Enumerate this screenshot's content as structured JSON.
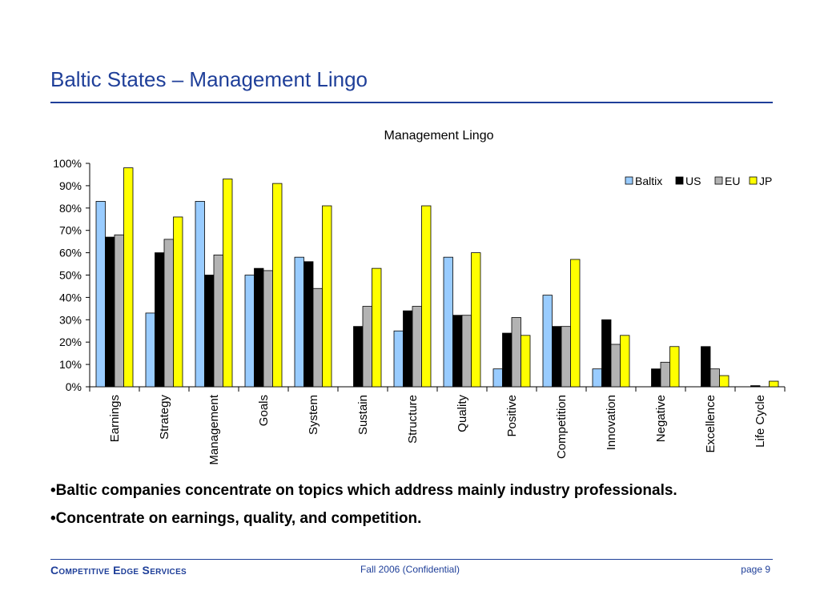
{
  "slide": {
    "title": "Baltic States – Management Lingo",
    "bullets": [
      "•Baltic companies concentrate on topics which address mainly industry professionals.",
      "•Concentrate on earnings, quality, and competition."
    ]
  },
  "footer": {
    "company": "Competitive Edge Services",
    "center": "Fall 2006 (Confidential)",
    "page": "page 9"
  },
  "chart_data": {
    "type": "bar",
    "title": "Management Lingo",
    "xlabel": "",
    "ylabel": "",
    "categories": [
      "Earnings",
      "Strategy",
      "Management",
      "Goals",
      "System",
      "Sustain",
      "Structure",
      "Quality",
      "Positive",
      "Competition",
      "Innovation",
      "Negative",
      "Excellence",
      "Life Cycle"
    ],
    "series": [
      {
        "name": "Baltix",
        "color": "#99ccff",
        "values": [
          83,
          33,
          83,
          50,
          58,
          0,
          25,
          58,
          8,
          41,
          8,
          0,
          0,
          0
        ]
      },
      {
        "name": "US",
        "color": "#000000",
        "values": [
          67,
          60,
          50,
          53,
          56,
          27,
          34,
          32,
          24,
          27,
          30,
          8,
          18,
          0.5
        ]
      },
      {
        "name": "EU",
        "color": "#b3b3b3",
        "values": [
          68,
          66,
          59,
          52,
          44,
          36,
          36,
          32,
          31,
          27,
          19,
          11,
          8,
          0
        ]
      },
      {
        "name": "JP",
        "color": "#ffff00",
        "values": [
          98,
          76,
          93,
          91,
          81,
          53,
          81,
          60,
          23,
          57,
          23,
          18,
          5,
          2.5
        ]
      }
    ],
    "ylim": [
      0,
      100
    ],
    "yticks": [
      "0%",
      "10%",
      "20%",
      "30%",
      "40%",
      "50%",
      "60%",
      "70%",
      "80%",
      "90%",
      "100%"
    ],
    "grid": false,
    "legend_position": "top-right"
  }
}
